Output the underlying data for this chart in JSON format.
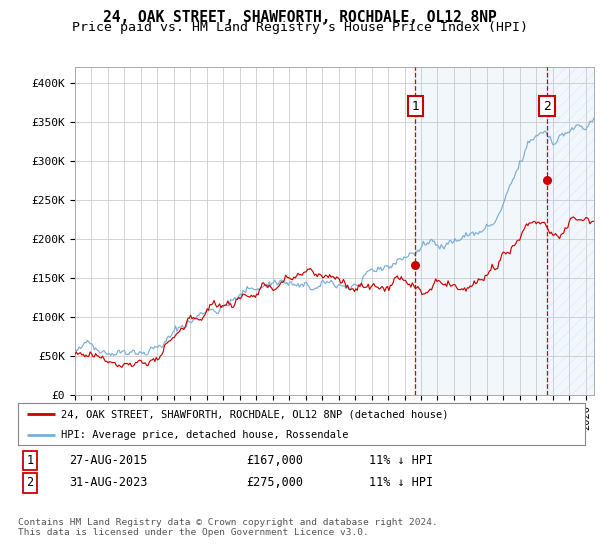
{
  "title": "24, OAK STREET, SHAWFORTH, ROCHDALE, OL12 8NP",
  "subtitle": "Price paid vs. HM Land Registry's House Price Index (HPI)",
  "ylabel_ticks": [
    "£0",
    "£50K",
    "£100K",
    "£150K",
    "£200K",
    "£250K",
    "£300K",
    "£350K",
    "£400K"
  ],
  "ytick_values": [
    0,
    50000,
    100000,
    150000,
    200000,
    250000,
    300000,
    350000,
    400000
  ],
  "ylim": [
    0,
    420000
  ],
  "xlim_start": 1995.0,
  "xlim_end": 2026.5,
  "hpi_color": "#7aaed6",
  "price_color": "#cc0000",
  "sale1_x": 2015.65,
  "sale1_y": 167000,
  "sale2_x": 2023.65,
  "sale2_y": 275000,
  "legend_line1": "24, OAK STREET, SHAWFORTH, ROCHDALE, OL12 8NP (detached house)",
  "legend_line2": "HPI: Average price, detached house, Rossendale",
  "note1_label": "1",
  "note1_date": "27-AUG-2015",
  "note1_price": "£167,000",
  "note1_hpi": "11% ↓ HPI",
  "note2_label": "2",
  "note2_date": "31-AUG-2023",
  "note2_price": "£275,000",
  "note2_hpi": "11% ↓ HPI",
  "footer": "Contains HM Land Registry data © Crown copyright and database right 2024.\nThis data is licensed under the Open Government Licence v3.0.",
  "bg_color": "#ffffff",
  "grid_color": "#cccccc",
  "title_fontsize": 10.5,
  "subtitle_fontsize": 9.5
}
